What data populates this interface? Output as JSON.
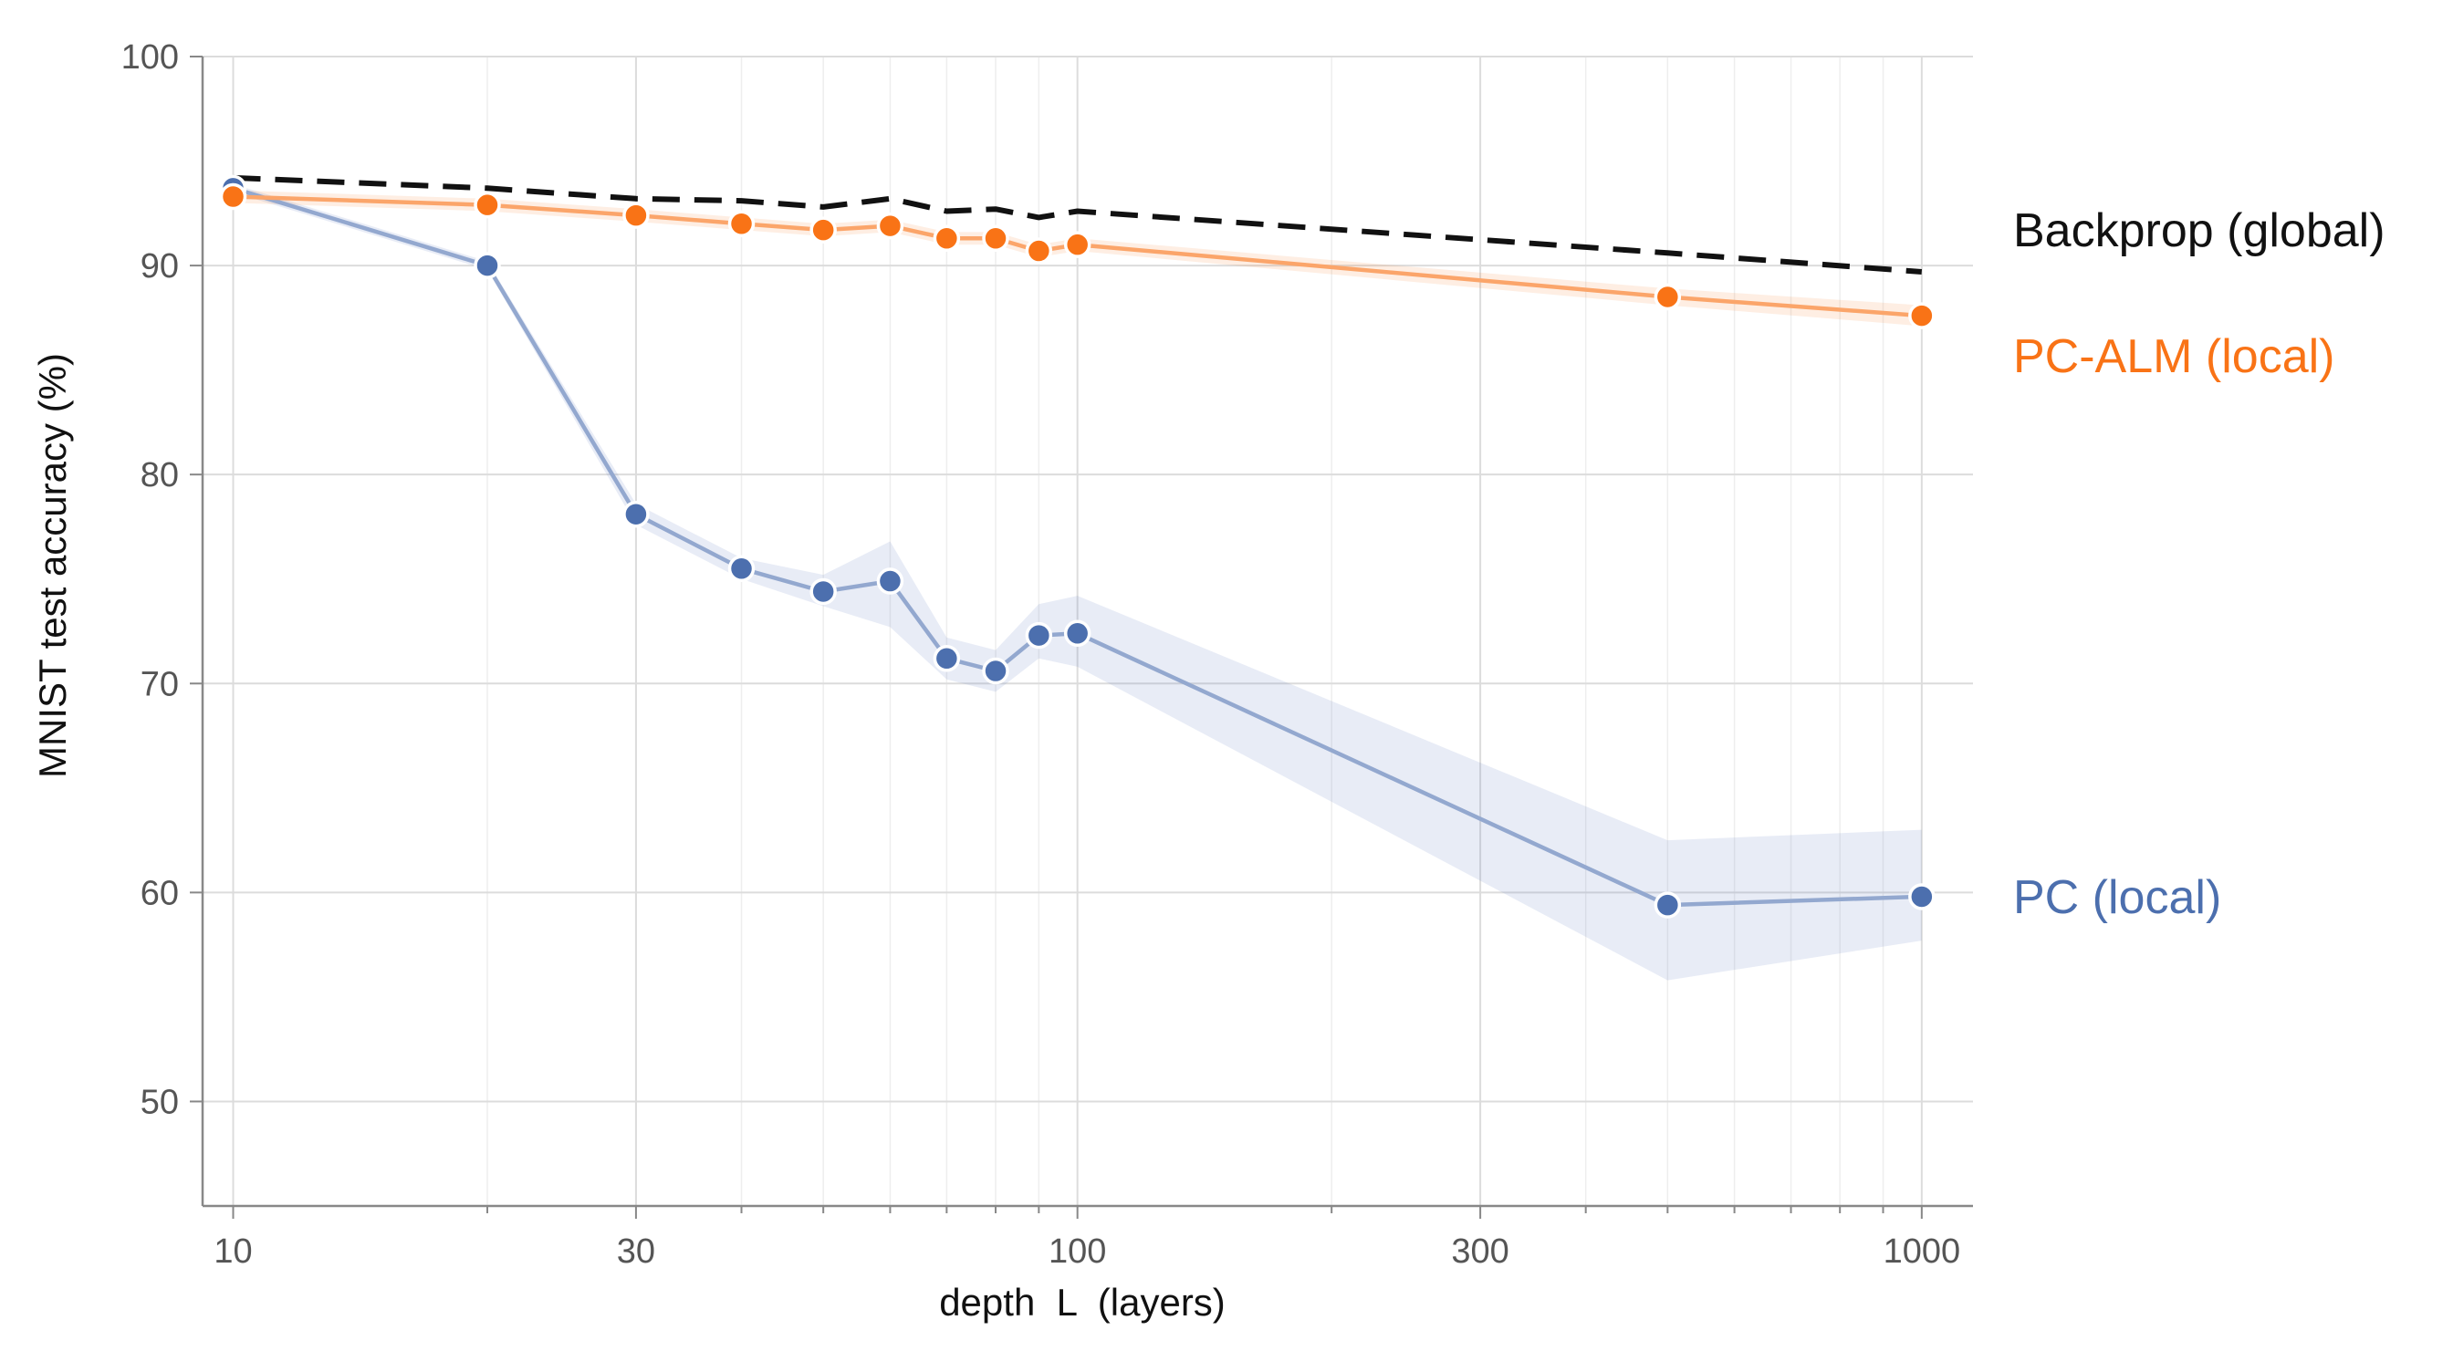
{
  "chart_data": {
    "type": "line",
    "xlabel": "depth  L  (layers)",
    "ylabel": "MNIST test accuracy (%)",
    "xscale": "log",
    "xlim": [
      9.2,
      1150
    ],
    "ylim": [
      45,
      100
    ],
    "xticks": [
      10,
      30,
      100,
      300,
      1000
    ],
    "xtick_labels": [
      "10",
      "30",
      "100",
      "300",
      "1000"
    ],
    "yticks": [
      50,
      60,
      70,
      80,
      90,
      100
    ],
    "ytick_labels": [
      "50",
      "60",
      "70",
      "80",
      "90",
      "100"
    ],
    "grid": true,
    "legend": "inline labels at right end of each line",
    "series": [
      {
        "name": "Backprop (global)",
        "color": "#111111",
        "style": "dashed",
        "markers": false,
        "x": [
          10,
          20,
          30,
          40,
          50,
          60,
          70,
          80,
          90,
          100,
          500,
          1000
        ],
        "y": [
          94.2,
          93.7,
          93.2,
          93.1,
          92.8,
          93.2,
          92.6,
          92.7,
          92.3,
          92.6,
          90.6,
          89.7
        ]
      },
      {
        "name": "PC-ALM (local)",
        "color": "#f97316",
        "style": "solid",
        "markers": true,
        "x": [
          10,
          20,
          30,
          40,
          50,
          60,
          70,
          80,
          90,
          100,
          500,
          1000
        ],
        "y": [
          93.3,
          92.9,
          92.4,
          92.0,
          91.7,
          91.9,
          91.3,
          91.3,
          90.7,
          91.0,
          88.5,
          87.6
        ],
        "band_lower": [
          93.0,
          92.6,
          92.1,
          91.7,
          91.4,
          91.6,
          91.0,
          91.0,
          90.4,
          90.7,
          88.1,
          87.1
        ],
        "band_upper": [
          93.6,
          93.2,
          92.7,
          92.3,
          92.0,
          92.2,
          91.6,
          91.6,
          91.0,
          91.3,
          88.9,
          88.1
        ]
      },
      {
        "name": "PC (local)",
        "color": "#4c6fae",
        "style": "solid",
        "markers": true,
        "x": [
          10,
          20,
          30,
          40,
          50,
          60,
          70,
          80,
          90,
          100,
          500,
          1000
        ],
        "y": [
          93.7,
          90.0,
          78.1,
          75.5,
          74.4,
          74.9,
          71.2,
          70.6,
          72.3,
          72.4,
          59.4,
          59.8
        ],
        "band_lower": [
          93.5,
          89.8,
          77.6,
          75.0,
          73.7,
          72.7,
          70.2,
          69.6,
          71.2,
          70.8,
          55.8,
          57.7
        ],
        "band_upper": [
          93.9,
          90.2,
          78.6,
          76.0,
          75.2,
          76.8,
          72.2,
          71.6,
          73.8,
          74.2,
          62.5,
          63.0
        ]
      }
    ],
    "labels": [
      {
        "text": "Backprop (global)",
        "color": "#111111"
      },
      {
        "text": "PC-ALM (local)",
        "color": "#f97316"
      },
      {
        "text": "PC (local)",
        "color": "#4c6fae"
      }
    ]
  }
}
